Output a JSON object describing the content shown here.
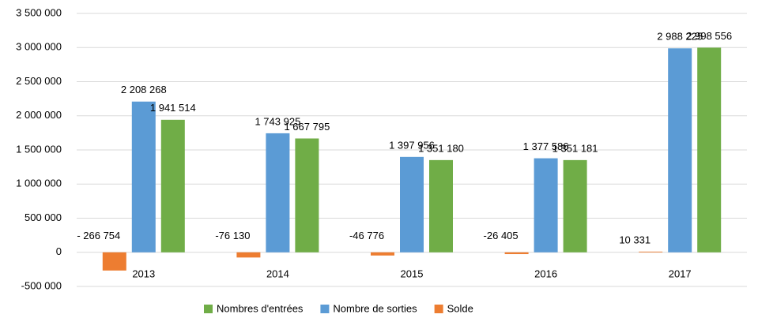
{
  "chart_data": {
    "type": "bar",
    "categories": [
      "2013",
      "2014",
      "2015",
      "2016",
      "2017"
    ],
    "series": [
      {
        "name": "Solde",
        "color": "#ed7d31",
        "values": [
          -266754,
          -76130,
          -46776,
          -26405,
          10331
        ],
        "value_labels": [
          "- 266 754",
          "-76 130",
          "-46 776",
          "-26 405",
          "10 331"
        ]
      },
      {
        "name": "Nombre de sorties",
        "color": "#5b9bd5",
        "values": [
          2208268,
          1743925,
          1397956,
          1377586,
          2988225
        ],
        "value_labels": [
          "2 208 268",
          "1 743 925",
          "1 397 956",
          "1 377 586",
          "2 988 225"
        ]
      },
      {
        "name": "Nombres d'entrées",
        "color": "#70ad47",
        "values": [
          1941514,
          1667795,
          1351180,
          1351181,
          2998556
        ],
        "value_labels": [
          "1 941 514",
          "1 667 795",
          "1 351 180",
          "1 351 181",
          "2 998 556"
        ]
      }
    ],
    "legend_order": [
      2,
      1,
      0
    ],
    "ylim": [
      -500000,
      3500000
    ],
    "yticks": [
      {
        "value": -500000,
        "label": "-500 000"
      },
      0,
      {
        "value": 500000,
        "label": "500 000"
      },
      {
        "value": 1000000,
        "label": "1 000 000"
      },
      {
        "value": 1500000,
        "label": "1 500 000"
      },
      {
        "value": 2000000,
        "label": "2 000 000"
      },
      {
        "value": 2500000,
        "label": "2 500 000"
      },
      {
        "value": 3000000,
        "label": "3 000 000"
      },
      {
        "value": 3500000,
        "label": "3 500 000"
      }
    ],
    "grid": true,
    "legend": "bottom"
  }
}
